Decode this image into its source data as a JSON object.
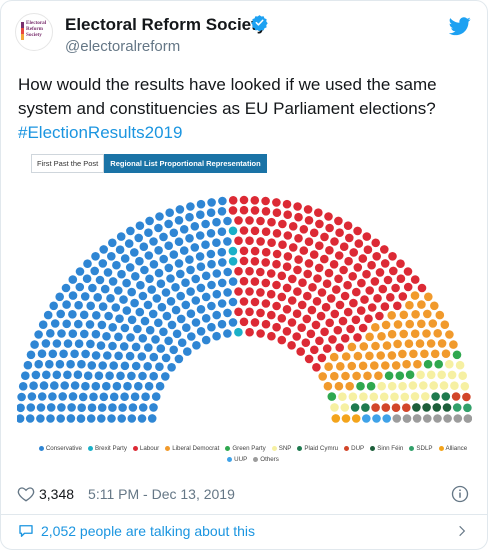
{
  "account": {
    "name": "Electoral Reform Society",
    "handle": "@electoralreform",
    "avatar_text": "Electoral Reform Society"
  },
  "tweet": {
    "text": "How would the results have looked if we used the same system and constituencies as EU Parliament elections?",
    "hashtag": "#ElectionResults2019"
  },
  "figure": {
    "tabs": [
      "First Past the Post",
      "Regional List Proportional Representation"
    ],
    "active_tab": 1
  },
  "chart_data": {
    "type": "parliament",
    "total_seats": 632,
    "rows": 14,
    "series": [
      {
        "name": "Conservative",
        "color": "#2f86d4",
        "values": 301
      },
      {
        "name": "Brexit Party",
        "color": "#1ab0c8",
        "values": 4
      },
      {
        "name": "Labour",
        "color": "#dc2a35",
        "values": 197
      },
      {
        "name": "Liberal Democrat",
        "color": "#f19a2c",
        "values": 64
      },
      {
        "name": "Green Party",
        "color": "#2fa84f",
        "values": 9
      },
      {
        "name": "SNP",
        "color": "#f6f0a2",
        "values": 27
      },
      {
        "name": "Plaid Cymru",
        "color": "#1e7a4f",
        "values": 4
      },
      {
        "name": "DUP",
        "color": "#d2462a",
        "values": 6
      },
      {
        "name": "Sinn Féin",
        "color": "#1d5e3a",
        "values": 4
      },
      {
        "name": "SDLP",
        "color": "#32a06a",
        "values": 2
      },
      {
        "name": "Alliance",
        "color": "#f3a41b",
        "values": 3
      },
      {
        "name": "UUP",
        "color": "#3fa2e8",
        "values": 3
      },
      {
        "name": "Others",
        "color": "#9c9c9c",
        "values": 8
      }
    ]
  },
  "footer": {
    "likes": "3,348",
    "timestamp": "5:11 PM - Dec 13, 2019",
    "talking": "2,052 people are talking about this"
  },
  "colors": {
    "link": "#1b95e0",
    "muted": "#657786"
  }
}
